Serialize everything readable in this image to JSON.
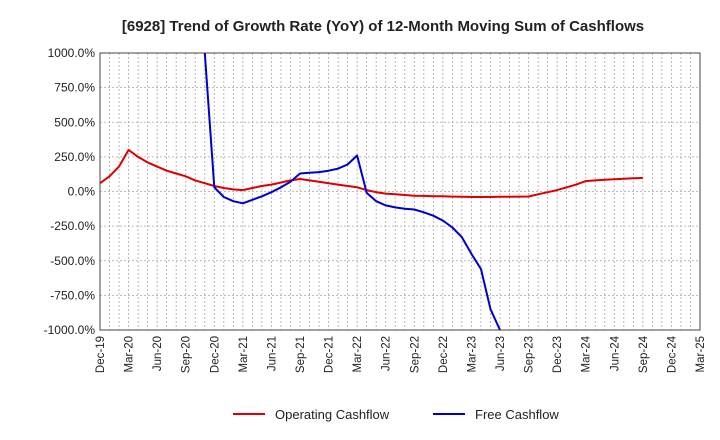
{
  "chart_data": {
    "type": "line",
    "title": "[6928]  Trend of Growth Rate (YoY) of 12-Month Moving Sum of Cashflows",
    "xlabel": "",
    "ylabel": "",
    "ylim": [
      -1000,
      1000
    ],
    "y_ticks": [
      "1000.0%",
      "750.0%",
      "500.0%",
      "250.0%",
      "0.0%",
      "-250.0%",
      "-500.0%",
      "-750.0%",
      "-1000.0%"
    ],
    "y_tick_values": [
      1000,
      750,
      500,
      250,
      0,
      -250,
      -500,
      -750,
      -1000
    ],
    "x_ticks": [
      "Dec-19",
      "Mar-20",
      "Jun-20",
      "Sep-20",
      "Dec-20",
      "Mar-21",
      "Jun-21",
      "Sep-21",
      "Dec-21",
      "Mar-22",
      "Jun-22",
      "Sep-22",
      "Dec-22",
      "Mar-23",
      "Jun-23",
      "Sep-23",
      "Dec-23",
      "Mar-24",
      "Jun-24",
      "Sep-24",
      "Dec-24",
      "Mar-25"
    ],
    "grid": true,
    "legend_position": "bottom",
    "series": [
      {
        "name": "Operating Cashflow",
        "color": "#dd0000",
        "x": [
          "Dec-19",
          "Jan-20",
          "Feb-20",
          "Mar-20",
          "Apr-20",
          "May-20",
          "Jun-20",
          "Jul-20",
          "Aug-20",
          "Sep-20",
          "Oct-20",
          "Nov-20",
          "Dec-20",
          "Jan-21",
          "Feb-21",
          "Mar-21",
          "Apr-21",
          "May-21",
          "Jun-21",
          "Jul-21",
          "Aug-21",
          "Sep-21",
          "Oct-21",
          "Nov-21",
          "Dec-21",
          "Jan-22",
          "Feb-22",
          "Mar-22",
          "Apr-22",
          "May-22",
          "Jun-22",
          "Jul-22",
          "Aug-22",
          "Sep-22",
          "Oct-22",
          "Nov-22",
          "Dec-22",
          "Jan-23",
          "Feb-23",
          "Mar-23",
          "Apr-23",
          "May-23",
          "Jun-23",
          "Jul-23",
          "Aug-23",
          "Sep-23",
          "Oct-23",
          "Nov-23",
          "Dec-23",
          "Jan-24",
          "Feb-24",
          "Mar-24",
          "Apr-24",
          "May-24",
          "Jun-24",
          "Jul-24",
          "Aug-24",
          "Sep-24"
        ],
        "values": [
          60,
          110,
          180,
          300,
          250,
          210,
          180,
          150,
          130,
          110,
          80,
          60,
          40,
          25,
          15,
          10,
          25,
          40,
          50,
          65,
          80,
          90,
          80,
          70,
          60,
          50,
          40,
          30,
          10,
          -5,
          -15,
          -20,
          -25,
          -30,
          -32,
          -34,
          -35,
          -37,
          -38,
          -40,
          -40,
          -40,
          -38,
          -38,
          -37,
          -36,
          -20,
          -5,
          10,
          30,
          50,
          75,
          80,
          85,
          88,
          92,
          95,
          98
        ]
      },
      {
        "name": "Free Cashflow",
        "color": "#0000cc",
        "x": [
          "Nov-20",
          "Dec-20",
          "Jan-21",
          "Feb-21",
          "Mar-21",
          "Apr-21",
          "May-21",
          "Jun-21",
          "Jul-21",
          "Aug-21",
          "Sep-21",
          "Oct-21",
          "Nov-21",
          "Dec-21",
          "Jan-22",
          "Feb-22",
          "Mar-22",
          "Apr-22",
          "May-22",
          "Jun-22",
          "Jul-22",
          "Aug-22",
          "Sep-22",
          "Oct-22",
          "Nov-22",
          "Dec-22",
          "Jan-23",
          "Feb-23",
          "Mar-23",
          "Apr-23",
          "May-23",
          "Jun-23"
        ],
        "values": [
          1000,
          30,
          -40,
          -70,
          -85,
          -60,
          -35,
          -5,
          30,
          70,
          130,
          135,
          140,
          150,
          165,
          195,
          260,
          -10,
          -70,
          -100,
          -115,
          -125,
          -130,
          -150,
          -175,
          -210,
          -260,
          -330,
          -450,
          -560,
          -850,
          -1000
        ]
      }
    ]
  }
}
